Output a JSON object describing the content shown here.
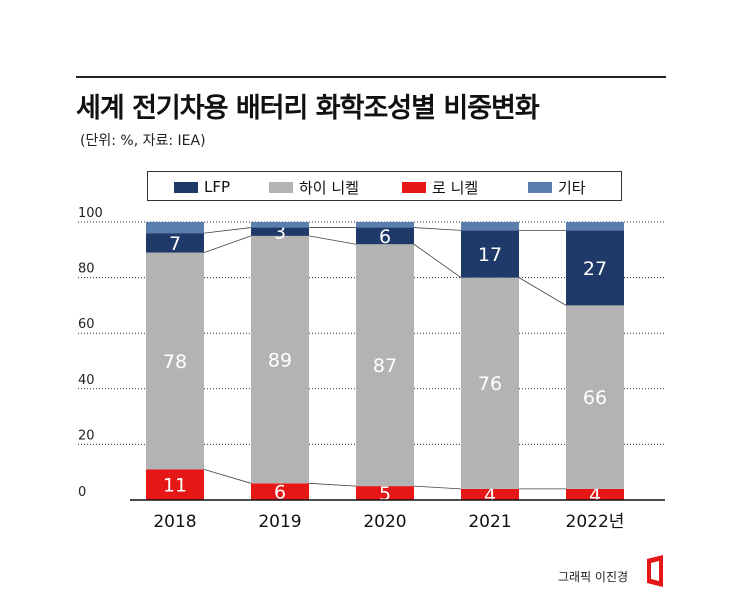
{
  "title": "세계 전기차용 배터리 화학조성별 비중변화",
  "subtitle": "(단위: %, 자료: IEA)",
  "credit": "그래픽 이진경",
  "legend": [
    {
      "label": "LFP",
      "color": "#1f3a68"
    },
    {
      "label": "하이 니켈",
      "color": "#b3b3b3"
    },
    {
      "label": "로 니켈",
      "color": "#e61717"
    },
    {
      "label": "기타",
      "color": "#5a7fae"
    }
  ],
  "chart_data": {
    "type": "bar",
    "stacked": true,
    "categories": [
      "2018",
      "2019",
      "2020",
      "2021",
      "2022년"
    ],
    "series": [
      {
        "name": "로 니켈",
        "values": [
          11,
          6,
          5,
          4,
          4
        ],
        "color": "#e61717"
      },
      {
        "name": "하이 니켈",
        "values": [
          78,
          89,
          87,
          76,
          66
        ],
        "color": "#b3b3b3"
      },
      {
        "name": "LFP",
        "values": [
          7,
          3,
          6,
          17,
          27
        ],
        "color": "#1f3a68"
      },
      {
        "name": "기타",
        "values": [
          4,
          2,
          2,
          3,
          3
        ],
        "color": "#5a7fae"
      }
    ],
    "labeled_series": [
      "로 니켈",
      "하이 니켈",
      "LFP"
    ],
    "yticks": [
      0,
      20,
      40,
      60,
      80,
      100
    ],
    "ylim": [
      0,
      100
    ],
    "grid": "dotted",
    "legend_position": "top"
  }
}
